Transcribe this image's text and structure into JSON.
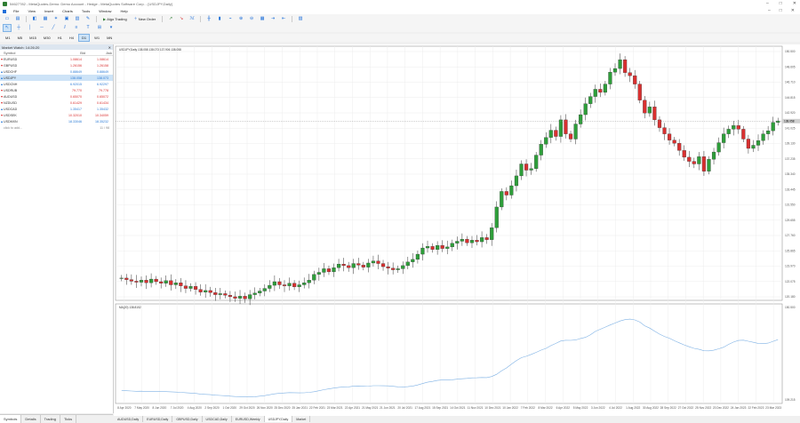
{
  "window": {
    "title": "54627782 - MetaQuotes-Demo: Demo Account - Hedge - MetaQuotes Software Corp. - [USDJPY,Daily]",
    "controls": [
      "–",
      "□",
      "✕"
    ]
  },
  "menu": [
    "File",
    "View",
    "Insert",
    "Charts",
    "Tools",
    "Window",
    "Help"
  ],
  "mdi_controls": [
    "–",
    "□",
    "✕"
  ],
  "toolbar": {
    "algo_trading": "Algo Trading",
    "new_order": "New Order"
  },
  "timeframes": [
    "M1",
    "M5",
    "M15",
    "M30",
    "H1",
    "H4",
    "D1",
    "W1",
    "MN"
  ],
  "active_timeframe": "D1",
  "market_watch": {
    "title": "Market Watch: 14:26:20",
    "headers": {
      "symbol": "Symbol",
      "bid": "Bid",
      "ask": "Ask"
    },
    "rows": [
      {
        "symbol": "EURUSD",
        "bid": "1.08614",
        "ask": "1.08614",
        "dir": "down"
      },
      {
        "symbol": "GBPUSD",
        "bid": "1.26156",
        "ask": "1.26158",
        "dir": "down"
      },
      {
        "symbol": "USDCHF",
        "bid": "0.88649",
        "ask": "0.88649",
        "dir": "up"
      },
      {
        "symbol": "USDJPY",
        "bid": "138.058",
        "ask": "138.073",
        "dir": "up",
        "selected": true
      },
      {
        "symbol": "USDCNH",
        "bid": "6.92015",
        "ask": "6.92297",
        "dir": "up"
      },
      {
        "symbol": "USDRUB",
        "bid": "79.770",
        "ask": "79.778",
        "dir": "down"
      },
      {
        "symbol": "AUDUSD",
        "bid": "0.65070",
        "ask": "0.65072",
        "dir": "down"
      },
      {
        "symbol": "NZDUSD",
        "bid": "0.61429",
        "ask": "0.61434",
        "dir": "down"
      },
      {
        "symbol": "USDCAD",
        "bid": "1.35417",
        "ask": "1.35432",
        "dir": "up"
      },
      {
        "symbol": "USDSEK",
        "bid": "10.32010",
        "ask": "10.34059",
        "dir": "down"
      },
      {
        "symbol": "USDMXN",
        "bid": "18.33046",
        "ask": "18.35232",
        "dir": "up"
      }
    ],
    "add_text": "click to add...",
    "count": "11 / 98",
    "tabs": [
      "Symbols",
      "Details",
      "Trading",
      "Ticks"
    ]
  },
  "chart": {
    "label": "USDJPY,Daily  138.058 138.073 137.906 138.058",
    "indicator_label": "MA(20) 138.8152",
    "price_ticks": [
      "150.500",
      "148.605",
      "146.710",
      "144.815",
      "142.920",
      "141.025",
      "139.130",
      "137.235",
      "135.340",
      "133.445",
      "131.550",
      "129.655",
      "127.760",
      "125.865",
      "123.970",
      "122.075",
      "120.180"
    ],
    "current_price": "138.058",
    "indicator_ticks": [
      "150.500",
      "109.215"
    ],
    "date_ticks": [
      "8 Apr 2020",
      "7 May 2020",
      "8 Jun 2020",
      "7 Jul 2020",
      "4 Aug 2020",
      "2 Sep 2020",
      "1 Oct 2020",
      "29 Oct 2020",
      "26 Nov 2020",
      "25 Dec 2020",
      "25 Jan 2021",
      "22 Feb 2021",
      "23 Mar 2021",
      "22 Apr 2021",
      "21 May 2021",
      "21 Jun 2021",
      "20 Jul 2021",
      "17 Aug 2021",
      "15 Sep 2021",
      "14 Oct 2021",
      "11 Nov 2021",
      "10 Dec 2021",
      "10 Jan 2022",
      "7 Feb 2022",
      "8 Mar 2022",
      "6 Apr 2022",
      "5 May 2022",
      "3 Jun 2022",
      "4 Jul 2022",
      "1 Aug 2022",
      "30 Aug 2022",
      "28 Sep 2022",
      "27 Oct 2022",
      "25 Nov 2022",
      "23 Dec 2022",
      "24 Jan 2023",
      "22 Feb 2023",
      "23 Mar 2023"
    ],
    "tabs": [
      "AUDUSD,Daily",
      "EURUSD,Daily",
      "GBPUSD,Daily",
      "USDCAD,Daily",
      "EURUSD,Weekly",
      "USDJPY,Daily",
      "Market"
    ],
    "active_tab": "USDJPY,Daily"
  },
  "chart_data": {
    "type": "line",
    "title": "",
    "ylim": [
      103.5,
      152.5
    ],
    "series": [
      {
        "values": [
          107.8,
          107.5,
          107.2,
          107.0,
          107.4,
          106.9,
          107.6,
          107.1,
          106.8,
          107.3,
          106.5,
          106.9,
          106.3,
          105.8,
          106.2,
          105.6,
          105.1,
          105.4,
          105.0,
          104.6,
          104.8,
          104.5,
          104.2,
          103.9,
          104.3,
          103.8,
          104.6,
          104.9,
          105.3,
          105.8,
          106.4,
          107.1,
          106.5,
          106.3,
          106.8,
          106.1,
          106.5,
          106.9,
          107.4,
          108.5,
          108.9,
          109.6,
          109.0,
          109.8,
          110.5,
          110.2,
          109.8,
          110.6,
          110.3,
          109.9,
          110.7,
          111.1,
          110.6,
          110.0,
          109.7,
          109.4,
          109.6,
          110.2,
          110.9,
          111.4,
          112.4,
          113.6,
          113.9,
          113.3,
          114.1,
          113.5,
          113.8,
          114.5,
          114.9,
          115.3,
          114.6,
          115.1,
          114.8,
          115.6,
          115.2,
          117.5,
          121.5,
          124.5,
          123.8,
          125.6,
          127.5,
          129.8,
          128.6,
          128.9,
          131.5,
          133.6,
          134.9,
          136.3,
          135.1,
          138.3,
          135.6,
          134.6,
          137.5,
          139.3,
          141.4,
          142.8,
          144.2,
          143.6,
          145.2,
          147.5,
          148.2,
          149.9,
          147.4,
          146.8,
          145.2,
          142.1,
          139.6,
          140.8,
          138.3,
          136.8,
          135.6,
          134.4,
          133.8,
          132.4,
          131.1,
          130.3,
          129.8,
          131.2,
          128.4,
          130.7,
          132.1,
          133.9,
          135.6,
          136.5,
          137.2,
          136.5,
          134.6,
          132.8,
          133.4,
          134.3,
          135.6,
          136.2,
          137.8,
          138.1
        ]
      }
    ]
  }
}
